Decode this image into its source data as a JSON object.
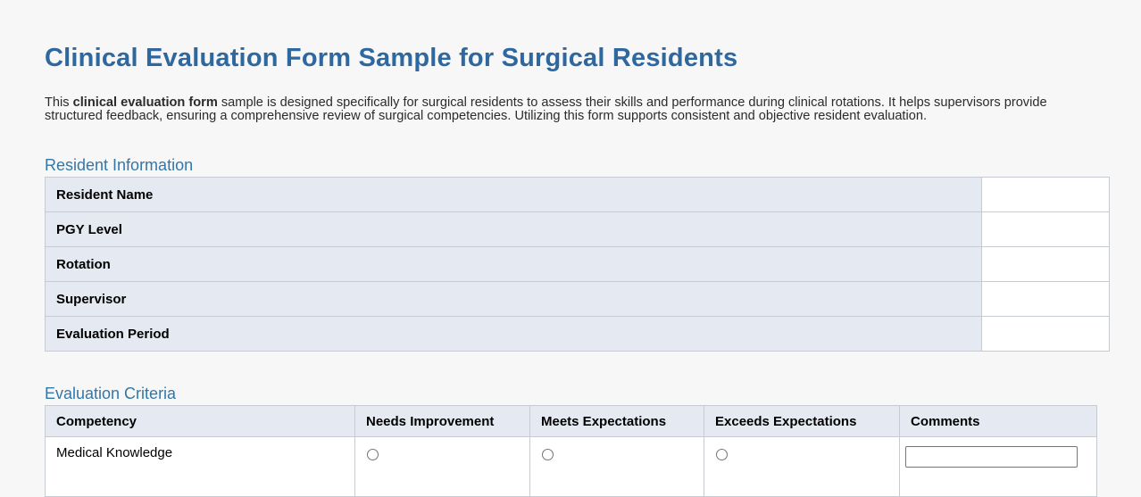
{
  "page": {
    "title": "Clinical Evaluation Form Sample for Surgical Residents",
    "intro": {
      "pre": "This ",
      "bold": "clinical evaluation form",
      "post": " sample is designed specifically for surgical residents to assess their skills and performance during clinical rotations. It helps supervisors provide structured feedback, ensuring a comprehensive review of surgical competencies. Utilizing this form supports consistent and objective resident evaluation."
    }
  },
  "resident_information": {
    "heading": "Resident Information",
    "fields": [
      {
        "label": "Resident Name",
        "value": ""
      },
      {
        "label": "PGY Level",
        "value": ""
      },
      {
        "label": "Rotation",
        "value": ""
      },
      {
        "label": "Supervisor",
        "value": ""
      },
      {
        "label": "Evaluation Period",
        "value": ""
      }
    ]
  },
  "evaluation_criteria": {
    "heading": "Evaluation Criteria",
    "columns": [
      "Competency",
      "Needs Improvement",
      "Meets Expectations",
      "Exceeds Expectations",
      "Comments"
    ],
    "rows": [
      {
        "competency": "Medical Knowledge",
        "needs_improvement_checked": false,
        "meets_expectations_checked": false,
        "exceeds_expectations_checked": false,
        "comment": ""
      }
    ]
  },
  "colors": {
    "title": "#2e689e",
    "heading": "#3377a9",
    "label_bg": "#e4e9f2",
    "border": "#c6cad1",
    "page_bg": "#f7f7f7",
    "text": "#222222"
  }
}
